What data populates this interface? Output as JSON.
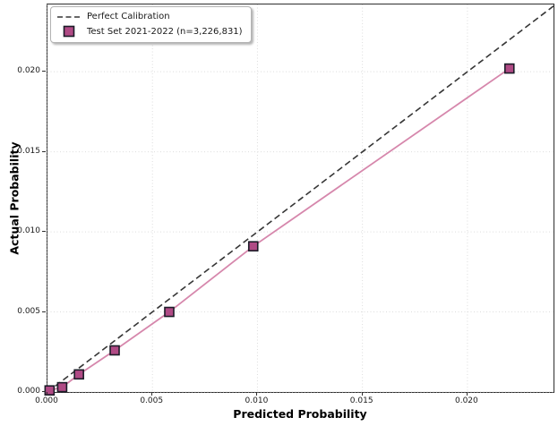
{
  "figure": {
    "background": "#ffffff",
    "spine_color": "#2e2e2e"
  },
  "chart_data": {
    "type": "line",
    "title": "",
    "xlabel": "Predicted Probability",
    "ylabel": "Actual Probability",
    "xlim": [
      0,
      0.0241
    ],
    "ylim": [
      0,
      0.0242
    ],
    "xticks": {
      "values": [
        0,
        0.005,
        0.01,
        0.015,
        0.02
      ],
      "labels": [
        "0.000",
        "0.005",
        "0.010",
        "0.015",
        "0.020"
      ]
    },
    "yticks": {
      "values": [
        0,
        0.005,
        0.01,
        0.015,
        0.02
      ],
      "labels": [
        "0.000",
        "0.005",
        "0.010",
        "0.015",
        "0.020"
      ]
    },
    "grid": {
      "show": true,
      "style": "dotted",
      "color": "#dcdcdc"
    },
    "legend": {
      "position": "upper-left",
      "entries": [
        {
          "label": "Perfect Calibration",
          "glyph": "dashed-line",
          "color": "#363636"
        },
        {
          "label": "Test Set 2021-2022 (n=3,226,831)",
          "glyph": "square-marker",
          "face": "#b04a85",
          "edge": "#1c1c28"
        }
      ]
    },
    "series": [
      {
        "name": "Perfect Calibration",
        "type": "line",
        "linestyle": "dashed",
        "color": "#363636",
        "x": [
          0,
          0.0241
        ],
        "y": [
          0,
          0.0241
        ]
      },
      {
        "name": "Test Set 2021-2022 (n=3,226,831)",
        "type": "line-markers",
        "linestyle": "solid",
        "color": "#d687ac",
        "marker": "square",
        "marker_face": "#b04a85",
        "marker_edge": "#1c1c28",
        "x": [
          0.0001,
          0.0007,
          0.0015,
          0.0032,
          0.0058,
          0.0098,
          0.022
        ],
        "y": [
          0.0001,
          0.0003,
          0.0011,
          0.0026,
          0.005,
          0.0091,
          0.0202
        ]
      }
    ]
  }
}
